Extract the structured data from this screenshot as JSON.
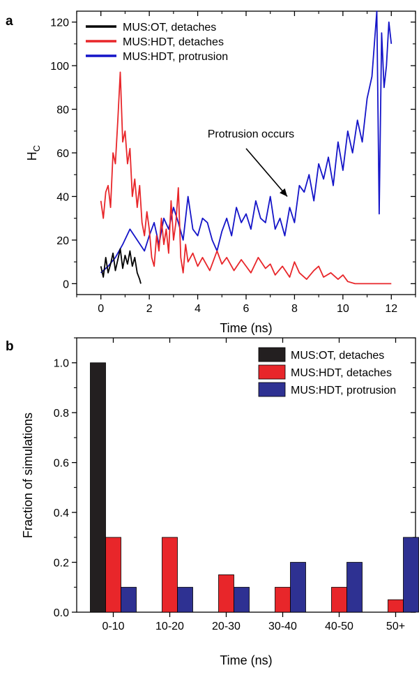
{
  "chart_data": [
    {
      "panel_label": "a",
      "type": "line",
      "xlabel": "Time (ns)",
      "ylabel": "H",
      "ylabel_sub": "C",
      "xlim": [
        -1,
        13
      ],
      "ylim": [
        -5,
        125
      ],
      "x_ticks": [
        0,
        2,
        4,
        6,
        8,
        10,
        12
      ],
      "y_ticks": [
        0,
        20,
        40,
        60,
        80,
        100,
        120
      ],
      "grid": false,
      "legend": "top-left",
      "annotation": {
        "text": "Protrusion occurs",
        "x": 6.2,
        "y": 67,
        "arrow_to": [
          7.7,
          40
        ]
      },
      "series": [
        {
          "name": "MUS:OT, detaches",
          "color": "#000000",
          "x": [
            0.0,
            0.1,
            0.2,
            0.3,
            0.4,
            0.5,
            0.6,
            0.7,
            0.8,
            0.9,
            1.0,
            1.1,
            1.2,
            1.3,
            1.4,
            1.5,
            1.6,
            1.65
          ],
          "y": [
            8,
            3,
            12,
            5,
            9,
            14,
            6,
            11,
            16,
            7,
            13,
            9,
            15,
            8,
            12,
            5,
            2,
            0
          ]
        },
        {
          "name": "MUS:HDT, detaches",
          "color": "#e8262a",
          "x": [
            0.0,
            0.1,
            0.2,
            0.3,
            0.4,
            0.5,
            0.6,
            0.7,
            0.8,
            0.9,
            1.0,
            1.1,
            1.2,
            1.3,
            1.4,
            1.5,
            1.6,
            1.7,
            1.8,
            1.9,
            2.0,
            2.1,
            2.2,
            2.3,
            2.4,
            2.5,
            2.6,
            2.7,
            2.8,
            2.9,
            3.0,
            3.1,
            3.2,
            3.3,
            3.4,
            3.5,
            3.6,
            3.8,
            4.0,
            4.2,
            4.5,
            4.8,
            5.0,
            5.2,
            5.5,
            5.8,
            6.0,
            6.2,
            6.5,
            6.8,
            7.0,
            7.2,
            7.5,
            7.8,
            8.0,
            8.2,
            8.5,
            8.8,
            9.0,
            9.2,
            9.5,
            9.8,
            10.0,
            10.2,
            10.5,
            11.0,
            11.5,
            12.0
          ],
          "y": [
            38,
            30,
            42,
            45,
            35,
            60,
            55,
            75,
            97,
            65,
            70,
            55,
            62,
            40,
            48,
            35,
            45,
            28,
            22,
            33,
            25,
            12,
            8,
            22,
            15,
            30,
            18,
            25,
            14,
            38,
            20,
            28,
            44,
            12,
            5,
            18,
            10,
            14,
            8,
            12,
            6,
            15,
            9,
            12,
            6,
            11,
            8,
            5,
            12,
            7,
            9,
            4,
            8,
            3,
            10,
            5,
            2,
            6,
            8,
            3,
            5,
            2,
            4,
            1,
            0,
            0,
            0,
            0
          ]
        },
        {
          "name": "MUS:HDT, protrusion",
          "color": "#1414c8",
          "x": [
            0.0,
            0.3,
            0.6,
            0.9,
            1.2,
            1.5,
            1.8,
            2.0,
            2.2,
            2.4,
            2.6,
            2.8,
            3.0,
            3.2,
            3.4,
            3.6,
            3.8,
            4.0,
            4.2,
            4.4,
            4.6,
            4.8,
            5.0,
            5.2,
            5.4,
            5.6,
            5.8,
            6.0,
            6.2,
            6.4,
            6.6,
            6.8,
            7.0,
            7.2,
            7.4,
            7.6,
            7.8,
            8.0,
            8.2,
            8.4,
            8.6,
            8.8,
            9.0,
            9.2,
            9.4,
            9.6,
            9.8,
            10.0,
            10.2,
            10.4,
            10.6,
            10.8,
            11.0,
            11.2,
            11.4,
            11.5,
            11.6,
            11.7,
            11.8,
            11.9,
            12.0
          ],
          "y": [
            5,
            8,
            12,
            18,
            25,
            20,
            15,
            22,
            28,
            18,
            30,
            25,
            35,
            28,
            20,
            40,
            25,
            22,
            30,
            28,
            20,
            15,
            24,
            30,
            22,
            35,
            28,
            32,
            25,
            38,
            30,
            28,
            40,
            25,
            30,
            22,
            35,
            28,
            45,
            42,
            50,
            38,
            55,
            48,
            58,
            45,
            65,
            52,
            70,
            60,
            75,
            65,
            85,
            95,
            125,
            32,
            115,
            90,
            100,
            120,
            110
          ]
        }
      ]
    },
    {
      "panel_label": "b",
      "type": "bar",
      "xlabel": "Time (ns)",
      "ylabel": "Fraction of simulations",
      "categories": [
        "0-10",
        "10-20",
        "20-30",
        "30-40",
        "40-50",
        "50+"
      ],
      "ylim": [
        0,
        1.1
      ],
      "y_ticks": [
        0.0,
        0.2,
        0.4,
        0.6,
        0.8,
        1.0
      ],
      "y_tick_labels": [
        "0.0",
        "0.2",
        "0.4",
        "0.6",
        "0.8",
        "1.0"
      ],
      "grid": false,
      "legend": "top-right",
      "series": [
        {
          "name": "MUS:OT, detaches",
          "color": "#231f20",
          "values": [
            1.0,
            0,
            0,
            0,
            0,
            0
          ]
        },
        {
          "name": "MUS:HDT, detaches",
          "color": "#e8262a",
          "values": [
            0.3,
            0.3,
            0.15,
            0.1,
            0.1,
            0.05
          ]
        },
        {
          "name": "MUS:HDT, protrusion",
          "color": "#2e3192",
          "values": [
            0.1,
            0.1,
            0.1,
            0.2,
            0.2,
            0.3
          ]
        }
      ]
    }
  ]
}
